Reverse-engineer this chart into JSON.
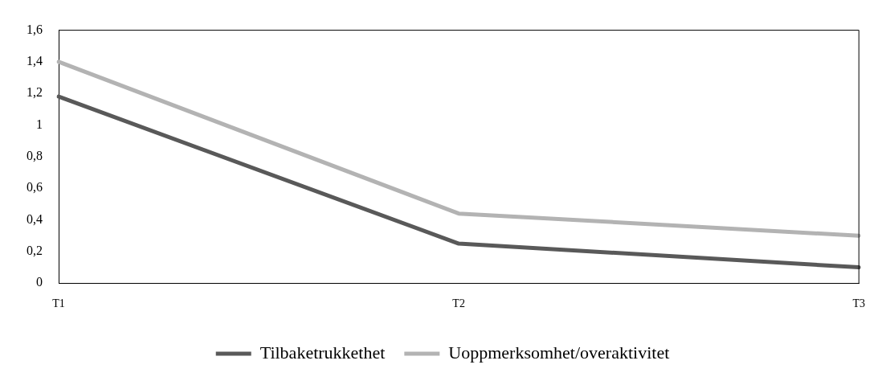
{
  "chart_data": {
    "type": "line",
    "categories": [
      "T1",
      "T2",
      "T3"
    ],
    "series": [
      {
        "name": "Tilbaketrukkethet",
        "color": "#595959",
        "values": [
          1.18,
          0.25,
          0.1
        ]
      },
      {
        "name": "Uoppmerksomhet/overaktivitet",
        "color": "#b3b3b3",
        "values": [
          1.4,
          0.44,
          0.3
        ]
      }
    ],
    "ylim": [
      0,
      1.6
    ],
    "yticks": [
      0,
      {
        "value": 0.2,
        "label": "0,2"
      },
      {
        "value": 0.4,
        "label": "0,4"
      },
      {
        "value": 0.6,
        "label": "0,6"
      },
      {
        "value": 0.8,
        "label": "0,8"
      },
      1,
      {
        "value": 1.2,
        "label": "1,2"
      },
      {
        "value": 1.4,
        "label": "1,4"
      },
      {
        "value": 1.6,
        "label": "1,6"
      }
    ],
    "grid": false,
    "legend": "bottom",
    "marker": "none",
    "line_style": "solid"
  }
}
